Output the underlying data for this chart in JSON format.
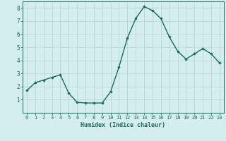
{
  "x": [
    0,
    1,
    2,
    3,
    4,
    5,
    6,
    7,
    8,
    9,
    10,
    11,
    12,
    13,
    14,
    15,
    16,
    17,
    18,
    19,
    20,
    21,
    22,
    23
  ],
  "y": [
    1.7,
    2.3,
    2.5,
    2.7,
    2.9,
    1.5,
    0.8,
    0.75,
    0.75,
    0.75,
    1.6,
    3.5,
    5.7,
    7.2,
    8.1,
    7.8,
    7.2,
    5.8,
    4.7,
    4.1,
    4.5,
    4.9,
    4.5,
    3.8
  ],
  "line_color": "#1a6b5a",
  "marker": "D",
  "marker_size": 1.8,
  "bg_color": "#d4eeee",
  "grid_color": "#b8d8d8",
  "xlabel": "Humidex (Indice chaleur)",
  "xlabel_color": "#1a6b5a",
  "axis_color": "#1a6b5a",
  "tick_color": "#1a6b5a",
  "xlim": [
    -0.5,
    23.5
  ],
  "ylim": [
    0,
    8.5
  ],
  "yticks": [
    1,
    2,
    3,
    4,
    5,
    6,
    7,
    8
  ],
  "xticks": [
    0,
    1,
    2,
    3,
    4,
    5,
    6,
    7,
    8,
    9,
    10,
    11,
    12,
    13,
    14,
    15,
    16,
    17,
    18,
    19,
    20,
    21,
    22,
    23
  ],
  "xtick_labels": [
    "0",
    "1",
    "2",
    "3",
    "4",
    "5",
    "6",
    "7",
    "8",
    "9",
    "10",
    "11",
    "12",
    "13",
    "14",
    "15",
    "16",
    "17",
    "18",
    "19",
    "20",
    "21",
    "22",
    "23"
  ],
  "line_width": 1.0,
  "fig_bg": "#d4eeee",
  "xlabel_fontsize": 6.0,
  "tick_fontsize_x": 5.0,
  "tick_fontsize_y": 5.5
}
